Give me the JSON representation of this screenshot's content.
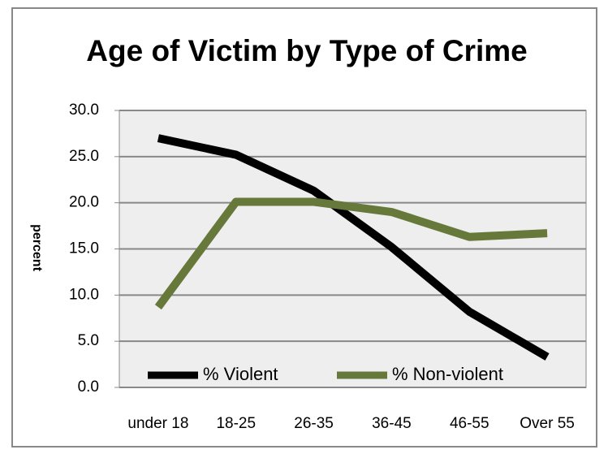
{
  "chart_data": {
    "type": "line",
    "title": "Age of Victim by Type of Crime",
    "y_label": "percent",
    "categories": [
      "under 18",
      "18-25",
      "26-35",
      "36-45",
      "46-55",
      "Over 55"
    ],
    "series": [
      {
        "name": "% Violent",
        "color": "#000000",
        "values": [
          27.0,
          25.2,
          21.3,
          15.2,
          8.2,
          3.3
        ]
      },
      {
        "name": "% Non-violent",
        "color": "#66783a",
        "values": [
          8.7,
          20.1,
          20.1,
          19.0,
          16.3,
          16.7
        ]
      }
    ],
    "ylim": [
      0,
      30
    ],
    "yticks": [
      {
        "value": 0,
        "label": "0.0"
      },
      {
        "value": 5,
        "label": "5.0"
      },
      {
        "value": 10,
        "label": "10.0"
      },
      {
        "value": 15,
        "label": "15.0"
      },
      {
        "value": 20,
        "label": "20.0"
      },
      {
        "value": 25,
        "label": "25.0"
      },
      {
        "value": 30,
        "label": "30.0"
      }
    ],
    "grid": true,
    "legend": "bottom"
  }
}
